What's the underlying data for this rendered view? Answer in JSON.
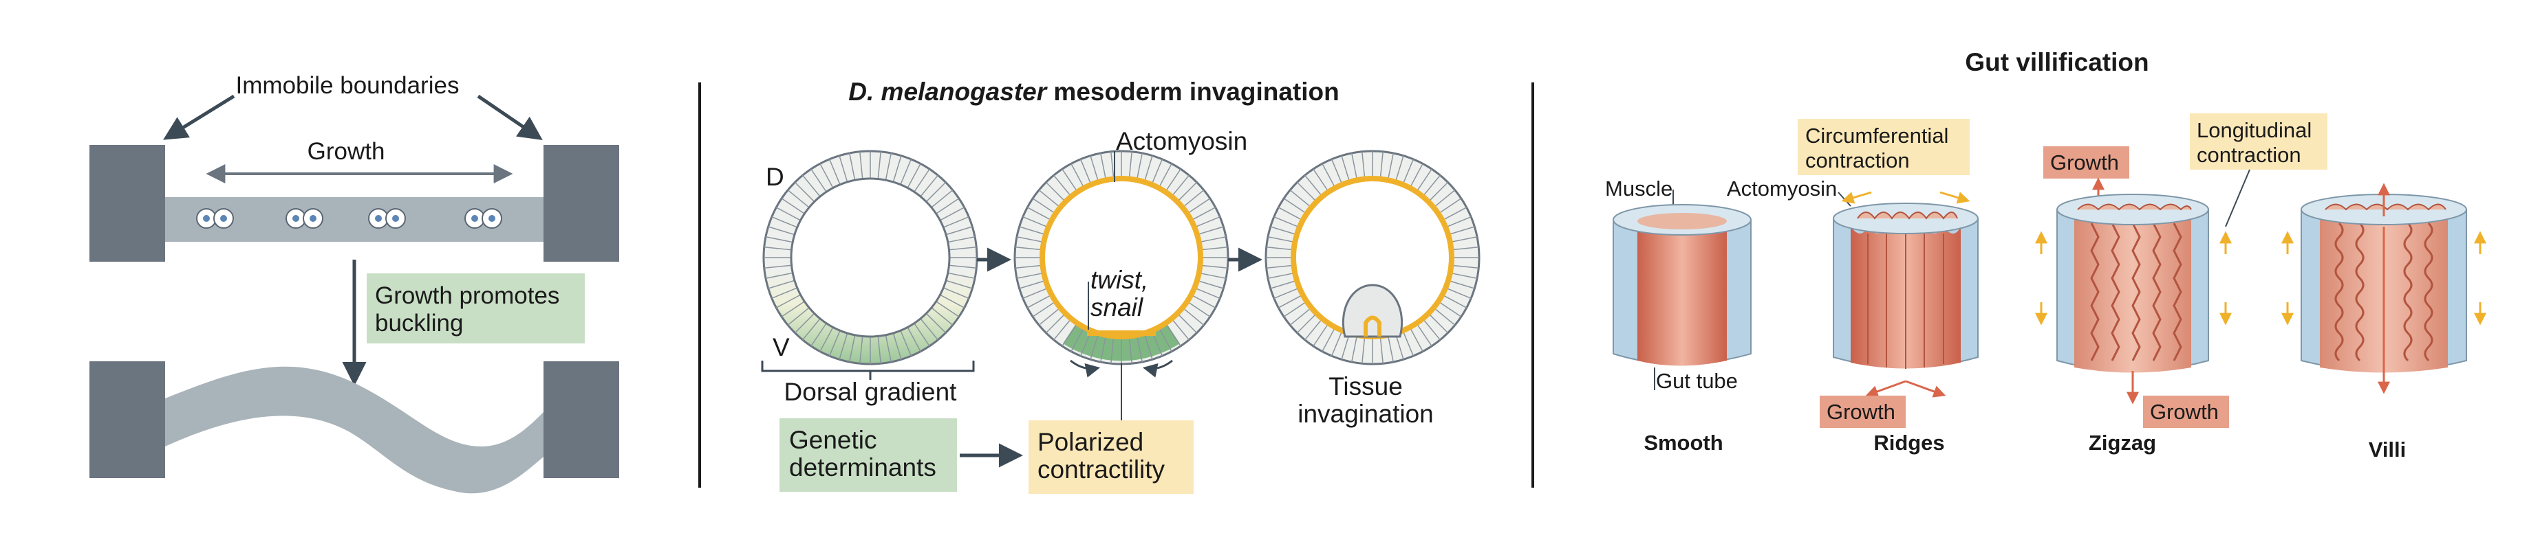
{
  "panel_a": {
    "immobile_label": "Immobile boundaries",
    "growth_label": "Growth",
    "buckling_line1": "Growth promotes",
    "buckling_line2": "buckling"
  },
  "panel_b": {
    "title_italic": "D. melanogaster",
    "title_rest": " mesoderm invagination",
    "d_label": "D",
    "v_label": "V",
    "actomyosin_label": "Actomyosin",
    "twist_label": "twist,",
    "snail_label": "snail",
    "dorsal_gradient_label": "Dorsal gradient",
    "tissue_line1": "Tissue",
    "tissue_line2": "invagination",
    "genetic_line1": "Genetic",
    "genetic_line2": "determinants",
    "polarized_line1": "Polarized",
    "polarized_line2": "contractility"
  },
  "panel_c": {
    "title": "Gut villification",
    "muscle_label": "Muscle",
    "actomyosin_label": "Actomyosin",
    "gut_tube_label": "Gut tube",
    "circ_line1": "Circumferential",
    "circ_line2": "contraction",
    "long_line1": "Longitudinal",
    "long_line2": "contraction",
    "growth_ridges": "Growth",
    "growth_zigzag_top": "Growth",
    "growth_zigzag_bottom": "Growth",
    "stages": [
      "Smooth",
      "Ridges",
      "Zigzag",
      "Villi"
    ]
  },
  "colors": {
    "boundary": "#6b7580",
    "tissue": "#a9b3ba",
    "arrow_dark": "#3c4a56",
    "green_box": "#c8dfc5",
    "yellow_box": "#fbe8b8",
    "orange": "#f0b12a",
    "salmon": "#e7a08a",
    "growth_red": "#d9664a",
    "muscle_blue": "#b6d2e4"
  }
}
